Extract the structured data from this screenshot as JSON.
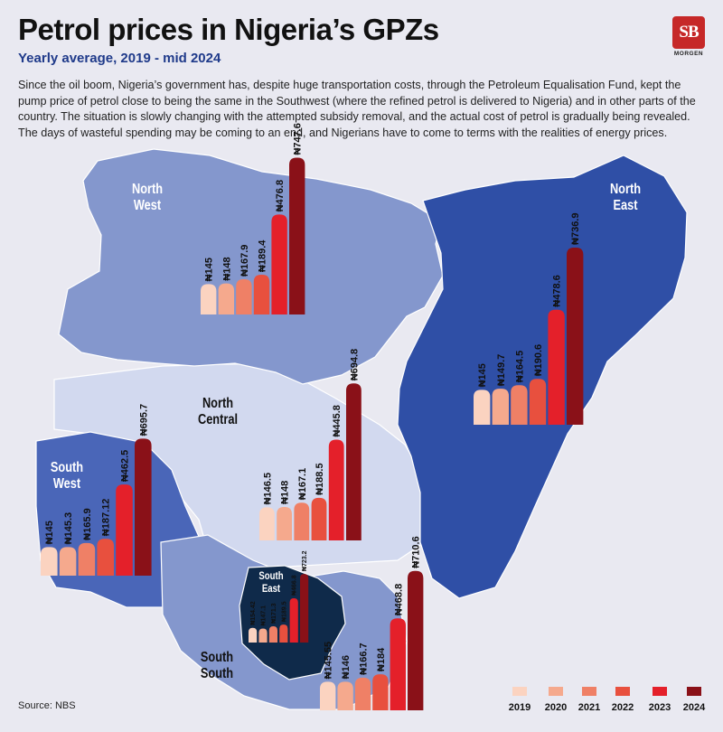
{
  "header": {
    "title": "Petrol prices in Nigeria’s GPZs",
    "subtitle": "Yearly average, 2019 - mid 2024",
    "description": "Since the oil boom, Nigeria’s government has, despite huge transportation costs, through the Petroleum Equalisation Fund, kept the pump price of petrol close to being the same in the Southwest (where the refined petrol is delivered to Nigeria) and in other parts of the country. The situation is slowly changing with the attempted subsidy removal, and the actual cost of petrol is gradually being revealed. The days of wasteful spending may be coming to an end, and Nigerians have to come to terms with the realities of energy prices."
  },
  "logo": {
    "mark": "SB",
    "word": "MORGEN"
  },
  "source": "Source: NBS",
  "colors": {
    "years": [
      "#fbd3c0",
      "#f5a98d",
      "#ef8066",
      "#e8503e",
      "#e4202a",
      "#8a1118"
    ],
    "map_north_west": "#8497cd",
    "map_north_east": "#2f4fa6",
    "map_north_central": "#d2d9ef",
    "map_south_west": "#4a66b8",
    "map_south_south": "#8497cd",
    "map_south_east": "#0f2a4a"
  },
  "chart_data": {
    "type": "bar",
    "title": "Petrol prices in Nigeria’s GPZs",
    "subtitle": "Yearly average, 2019 - mid 2024",
    "unit": "₦ per litre",
    "legend_position": "bottom-right",
    "years": [
      "2019",
      "2020",
      "2021",
      "2022",
      "2023",
      "2024"
    ],
    "regions": [
      {
        "id": "nw",
        "name_line1": "North",
        "name_line2": "West",
        "values": [
          145,
          148,
          167.9,
          189.4,
          476.8,
          747.6
        ],
        "labels": [
          "₦145",
          "₦148",
          "₦167.9",
          "₦189.4",
          "₦476.8",
          "₦747.6"
        ]
      },
      {
        "id": "ne",
        "name_line1": "North",
        "name_line2": "East",
        "values": [
          145,
          149.7,
          164.5,
          190.6,
          478.6,
          736.9
        ],
        "labels": [
          "₦145",
          "₦149.7",
          "₦164.5",
          "₦190.6",
          "₦478.6",
          "₦736.9"
        ]
      },
      {
        "id": "nc",
        "name_line1": "North",
        "name_line2": "Central",
        "values": [
          146.5,
          148,
          167.1,
          188.5,
          445.8,
          694.8
        ],
        "labels": [
          "₦146.5",
          "₦148",
          "₦167.1",
          "₦188.5",
          "₦445.8",
          "₦694.8"
        ]
      },
      {
        "id": "sw",
        "name_line1": "South",
        "name_line2": "West",
        "values": [
          145,
          145.3,
          165.9,
          187.12,
          462.5,
          695.7
        ],
        "labels": [
          "₦145",
          "₦145.3",
          "₦165.9",
          "₦187.12",
          "₦462.5",
          "₦695.7"
        ]
      },
      {
        "id": "se",
        "name_line1": "South",
        "name_line2": "East",
        "values": [
          154.42,
          147.1,
          171.3,
          189.5,
          466.8,
          723.2
        ],
        "labels": [
          "₦154.42",
          "₦147.1",
          "₦171.3",
          "₦189.5",
          "₦466.8",
          "₦723.2"
        ]
      },
      {
        "id": "ss",
        "name_line1": "South",
        "name_line2": "South",
        "values": [
          145.55,
          146,
          166.7,
          184,
          468.8,
          710.6
        ],
        "labels": [
          "₦145.55",
          "₦146",
          "₦166.7",
          "₦184",
          "₦468.8",
          "₦710.6"
        ]
      }
    ]
  }
}
